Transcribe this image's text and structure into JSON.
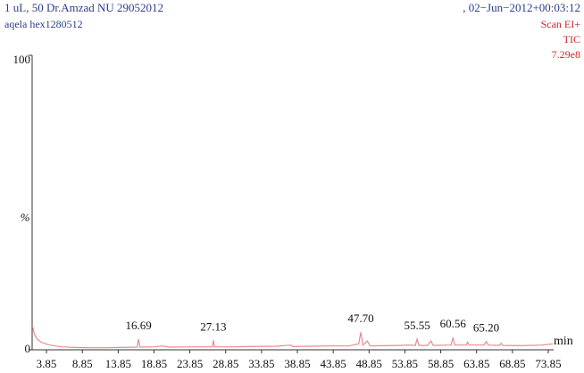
{
  "chart_data": {
    "type": "line",
    "title": "1 uL, 50 Dr.Amzad NU 29052012",
    "subtitle": "aqela hex1280512",
    "date": ", 02−Jun−2012+00:03:12",
    "scan": "Scan EI+",
    "trace": "TIC",
    "intensity": "7.29e8",
    "y_label": "%",
    "x_label": "min",
    "color": "#ec8a8a",
    "xlim": [
      1.85,
      74.6
    ],
    "ylim": [
      0,
      100
    ],
    "xticks": [
      3.85,
      8.85,
      13.85,
      18.85,
      23.85,
      28.85,
      33.85,
      38.85,
      43.85,
      48.85,
      53.85,
      58.85,
      63.85,
      68.85,
      73.85
    ],
    "yticks": [
      0,
      100
    ],
    "x": [
      1.9,
      2.2,
      2.6,
      3.2,
      4,
      5,
      6,
      8,
      10,
      12,
      14,
      16.5,
      16.69,
      16.9,
      19,
      20,
      21,
      24,
      27,
      27.13,
      27.3,
      30,
      32,
      36,
      38,
      38.2,
      41,
      43,
      46,
      47.4,
      47.7,
      48,
      48.6,
      49,
      51,
      53,
      54.5,
      55.3,
      55.55,
      55.8,
      57,
      57.5,
      57.8,
      60.3,
      60.56,
      60.8,
      62.4,
      62.6,
      62.8,
      64.9,
      65.2,
      65.5,
      67,
      67.3,
      67.5,
      70,
      73,
      74.5
    ],
    "values": [
      8,
      5,
      3.5,
      2.5,
      1.8,
      1.3,
      1,
      0.8,
      0.7,
      0.7,
      0.8,
      0.9,
      3.6,
      0.9,
      1,
      1.3,
      0.9,
      1,
      1,
      3.2,
      1,
      1,
      1.1,
      1.2,
      1.6,
      1.1,
      1.2,
      1.3,
      1.3,
      2,
      6,
      1.6,
      3,
      1.3,
      1.4,
      1.5,
      1.6,
      1.5,
      3.6,
      1.5,
      1.5,
      3,
      1.5,
      1.6,
      4.2,
      1.6,
      1.6,
      2.6,
      1.6,
      1.6,
      2.8,
      1.6,
      1.5,
      2.2,
      1.5,
      1.4,
      1.6,
      2
    ],
    "peaks": [
      {
        "x": 16.69,
        "y": 3.6,
        "label": "16.69"
      },
      {
        "x": 27.13,
        "y": 3.2,
        "label": "27.13"
      },
      {
        "x": 47.7,
        "y": 6,
        "label": "47.70"
      },
      {
        "x": 55.55,
        "y": 3.6,
        "label": "55.55"
      },
      {
        "x": 60.56,
        "y": 4.2,
        "label": "60.56"
      },
      {
        "x": 65.2,
        "y": 2.8,
        "label": "65.20"
      }
    ]
  }
}
